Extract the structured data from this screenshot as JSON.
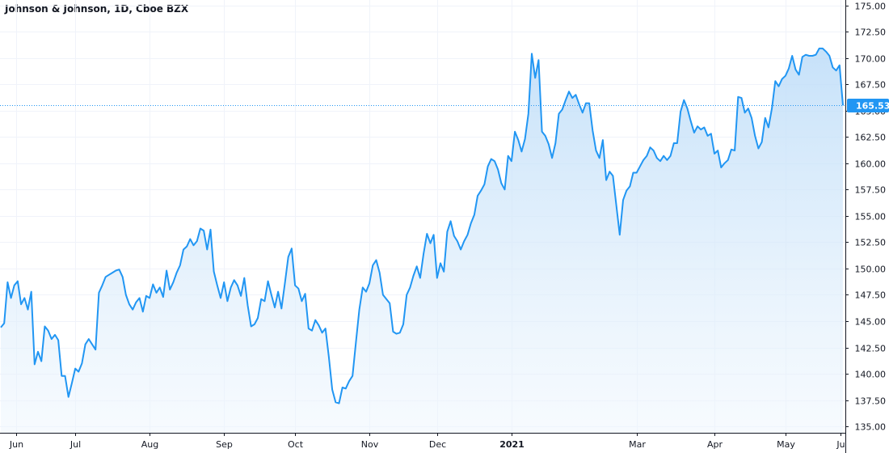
{
  "chart_data": {
    "type": "area",
    "title": "Johnson & Johnson, 1D, Cboe BZX",
    "x_tick_labels": [
      "Jun",
      "Jul",
      "Aug",
      "Sep",
      "Oct",
      "Nov",
      "Dec",
      "2021",
      "Mar",
      "Apr",
      "May",
      "Ju"
    ],
    "y_tick_labels": [
      "135.00",
      "137.50",
      "140.00",
      "142.50",
      "145.00",
      "147.50",
      "150.00",
      "152.50",
      "155.00",
      "157.50",
      "160.00",
      "162.50",
      "165.00",
      "167.50",
      "170.00",
      "172.50",
      "175.00"
    ],
    "ylim": [
      134.4,
      175.5
    ],
    "last_price": 165.53,
    "grid": true,
    "colors": {
      "line": "#2196f3",
      "fill_top": "#bcdcf8",
      "fill_bottom": "#eef6fd",
      "grid": "#f0f3fa",
      "axis": "#131722",
      "price_tag": "#2196f3"
    },
    "series": [
      {
        "values": [
          144.4,
          144.8,
          148.7,
          147.2,
          148.4,
          148.8,
          146.6,
          147.2,
          146.1,
          147.8,
          140.9,
          142.1,
          141.2,
          144.5,
          144.1,
          143.3,
          143.7,
          143.2,
          139.8,
          139.8,
          137.8,
          139.1,
          140.5,
          140.2,
          141,
          142.8,
          143.3,
          142.8,
          142.3,
          147.7,
          148.4,
          149.2,
          149.4,
          149.6,
          149.8,
          149.9,
          149.2,
          147.5,
          146.6,
          146.1,
          146.8,
          147.2,
          145.9,
          147.4,
          147.2,
          148.5,
          147.7,
          148.2,
          147.3,
          149.8,
          148,
          148.7,
          149.6,
          150.3,
          151.8,
          152.1,
          152.8,
          152.2,
          152.6,
          153.8,
          153.6,
          151.8,
          153.7,
          149.7,
          148.4,
          147.2,
          148.7,
          146.9,
          148.2,
          148.9,
          148.4,
          147.4,
          149.1,
          146.5,
          144.5,
          144.7,
          145.3,
          147.1,
          146.9,
          148.8,
          147.5,
          146.3,
          147.8,
          146.2,
          148.6,
          151.1,
          151.9,
          148.4,
          148.1,
          146.9,
          147.6,
          144.3,
          144.1,
          145.1,
          144.6,
          143.9,
          144.3,
          141.6,
          138.5,
          137.3,
          137.2,
          138.7,
          138.6,
          139.3,
          139.8,
          143,
          146.1,
          148.2,
          147.8,
          148.6,
          150.3,
          150.8,
          149.6,
          147.5,
          147.1,
          146.7,
          144,
          143.8,
          143.9,
          144.7,
          147.5,
          148.2,
          149.3,
          150.2,
          149.1,
          151.4,
          153.3,
          152.4,
          153.2,
          149.1,
          150.5,
          149.7,
          153.5,
          154.5,
          153.1,
          152.6,
          151.8,
          152.6,
          153.2,
          154.3,
          155.1,
          156.9,
          157.4,
          158,
          159.7,
          160.4,
          160.2,
          159.4,
          158.1,
          157.5,
          160.7,
          160.2,
          163,
          162.2,
          161.1,
          162.3,
          164.7,
          170.4,
          168.1,
          169.8,
          163,
          162.6,
          161.8,
          160.5,
          161.9,
          164.7,
          165.1,
          166,
          166.8,
          166.2,
          166.5,
          165.6,
          164.8,
          165.7,
          165.7,
          163.1,
          161.2,
          160.5,
          162.2,
          158.4,
          159.2,
          158.8,
          156,
          153.2,
          156.5,
          157.4,
          157.8,
          159.1,
          159.1,
          159.7,
          160.3,
          160.7,
          161.5,
          161.2,
          160.5,
          160.2,
          160.7,
          160.3,
          160.7,
          161.9,
          161.9,
          164.9,
          166,
          165.2,
          164,
          162.9,
          163.5,
          163.2,
          163.4,
          162.6,
          162.8,
          160.9,
          161.2,
          159.6,
          160,
          160.3,
          161.3,
          161.2,
          166.3,
          166.2,
          164.8,
          165.2,
          164.3,
          162.6,
          161.4,
          162,
          164.3,
          163.4,
          165.2,
          167.8,
          167.3,
          168,
          168.3,
          169,
          170.2,
          168.9,
          168.4,
          170.1,
          170.3,
          170.2,
          170.2,
          170.3,
          170.9,
          170.9,
          170.6,
          170.2,
          169.1,
          168.8,
          169.3,
          165.5
        ]
      }
    ]
  }
}
